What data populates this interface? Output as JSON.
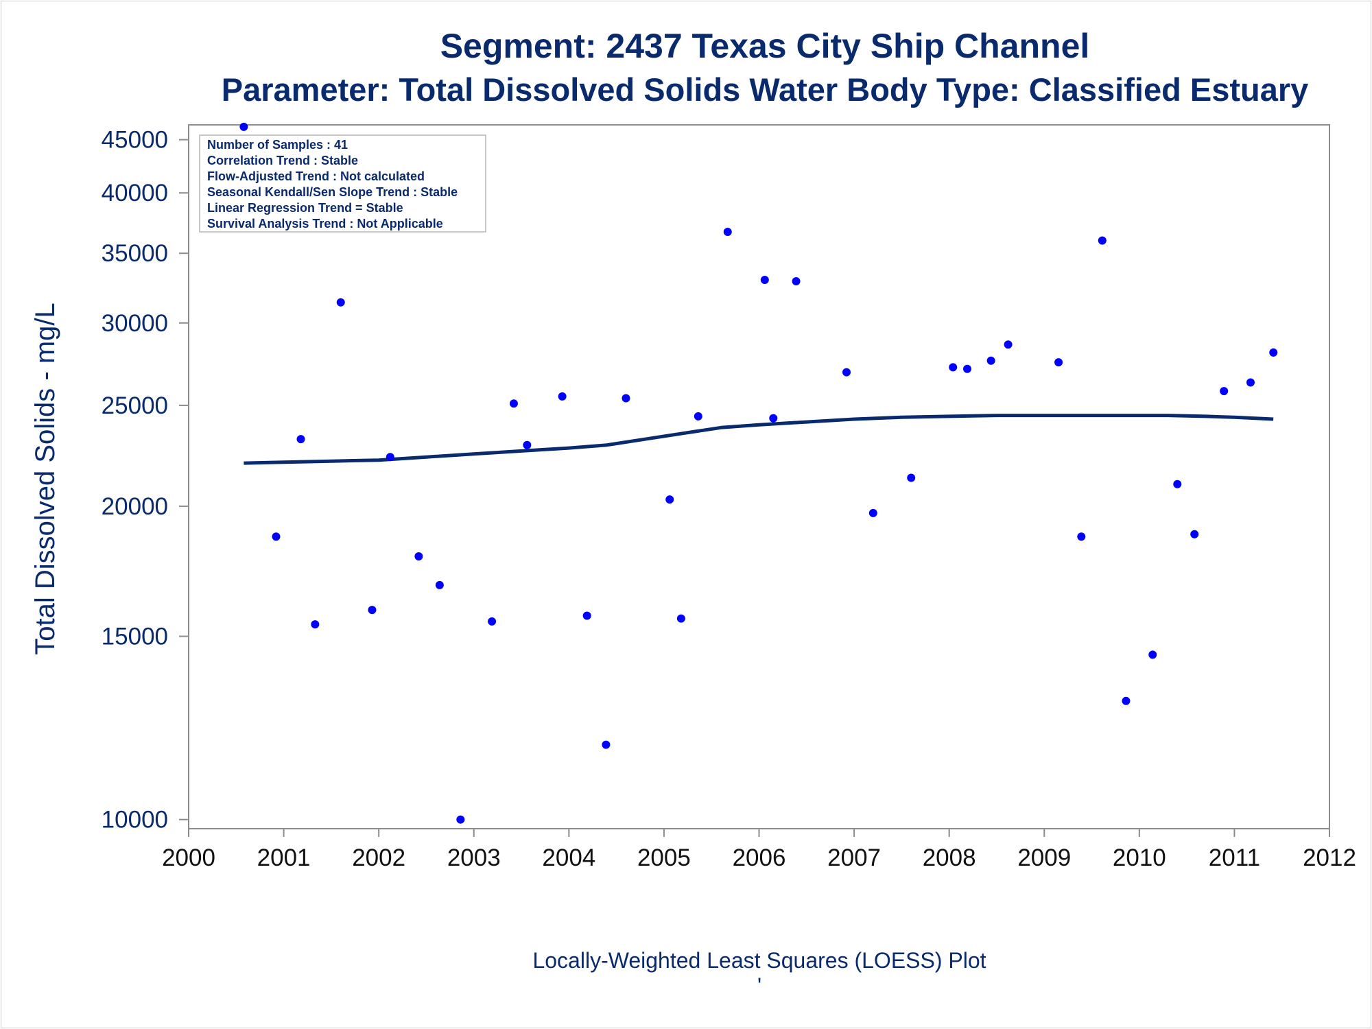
{
  "chart_data": {
    "type": "scatter",
    "title": "Segment: 2437  Texas City Ship Channel",
    "subtitle": "Parameter: Total Dissolved Solids   Water Body Type: Classified Estuary",
    "xlabel": "",
    "ylabel": "Total Dissolved Solids - mg/L",
    "footnote": "Locally-Weighted Least Squares (LOESS) Plot",
    "footnote2": "'",
    "y_scale": "log",
    "xlim": [
      2000,
      2012
    ],
    "ylim": [
      9800,
      46500
    ],
    "x_ticks": [
      2000,
      2001,
      2002,
      2003,
      2004,
      2005,
      2006,
      2007,
      2008,
      2009,
      2010,
      2011,
      2012
    ],
    "x_tick_labels": [
      "2000",
      "2001",
      "2002",
      "2003",
      "2004",
      "2005",
      "2006",
      "2007",
      "2008",
      "2009",
      "2010",
      "2011",
      "2012"
    ],
    "y_ticks": [
      10000,
      15000,
      20000,
      25000,
      30000,
      35000,
      40000,
      45000
    ],
    "y_tick_labels": [
      "10000",
      "15000",
      "20000",
      "25000",
      "30000",
      "35000",
      "40000",
      "45000"
    ],
    "grid": false,
    "legend_position": "top-left",
    "legend_lines": [
      "Number of Samples : 41",
      "Correlation Trend : Stable",
      "Flow-Adjusted Trend : Not calculated",
      "Seasonal Kendall/Sen Slope Trend : Stable",
      "Linear Regression Trend = Stable",
      "Survival Analysis Trend : Not Applicable"
    ],
    "colors": {
      "points": "#0000ff",
      "loess": "#0a2a6e",
      "text": "#0a2a6e",
      "frame": "#8c8c8c"
    },
    "series": [
      {
        "type": "scatter",
        "x": [
          2000.58,
          2000.92,
          2001.18,
          2001.33,
          2001.6,
          2001.93,
          2002.12,
          2002.42,
          2002.64,
          2002.86,
          2003.19,
          2003.42,
          2003.56,
          2003.93,
          2004.19,
          2004.39,
          2004.6,
          2005.06,
          2005.18,
          2005.36,
          2005.67,
          2006.06,
          2006.15,
          2006.39,
          2006.92,
          2007.2,
          2007.6,
          2008.04,
          2008.19,
          2008.44,
          2008.62,
          2009.15,
          2009.39,
          2009.61,
          2009.86,
          2010.14,
          2010.4,
          2010.58,
          2010.89,
          2011.17,
          2011.41
        ],
        "y": [
          46300,
          18700,
          23200,
          15400,
          31400,
          15900,
          22300,
          17900,
          16800,
          10000,
          15500,
          25100,
          22900,
          25500,
          15700,
          11800,
          25400,
          20300,
          15600,
          24400,
          36700,
          33000,
          24300,
          32900,
          26900,
          19700,
          21300,
          27200,
          27100,
          27600,
          28600,
          27500,
          18700,
          36000,
          13000,
          14400,
          21000,
          18800,
          25800,
          26300,
          28100
        ]
      },
      {
        "type": "line",
        "name": "",
        "x": [
          2000.58,
          2001.0,
          2001.5,
          2002.0,
          2002.5,
          2003.0,
          2003.5,
          2004.0,
          2004.4,
          2004.8,
          2005.2,
          2005.6,
          2006.0,
          2006.5,
          2007.0,
          2007.5,
          2008.0,
          2008.5,
          2009.0,
          2009.5,
          2010.0,
          2010.3,
          2010.7,
          2011.0,
          2011.41
        ],
        "y": [
          22000,
          22050,
          22100,
          22150,
          22300,
          22450,
          22600,
          22750,
          22900,
          23200,
          23500,
          23800,
          23950,
          24100,
          24250,
          24350,
          24400,
          24450,
          24450,
          24450,
          24450,
          24450,
          24400,
          24350,
          24250
        ]
      }
    ]
  }
}
